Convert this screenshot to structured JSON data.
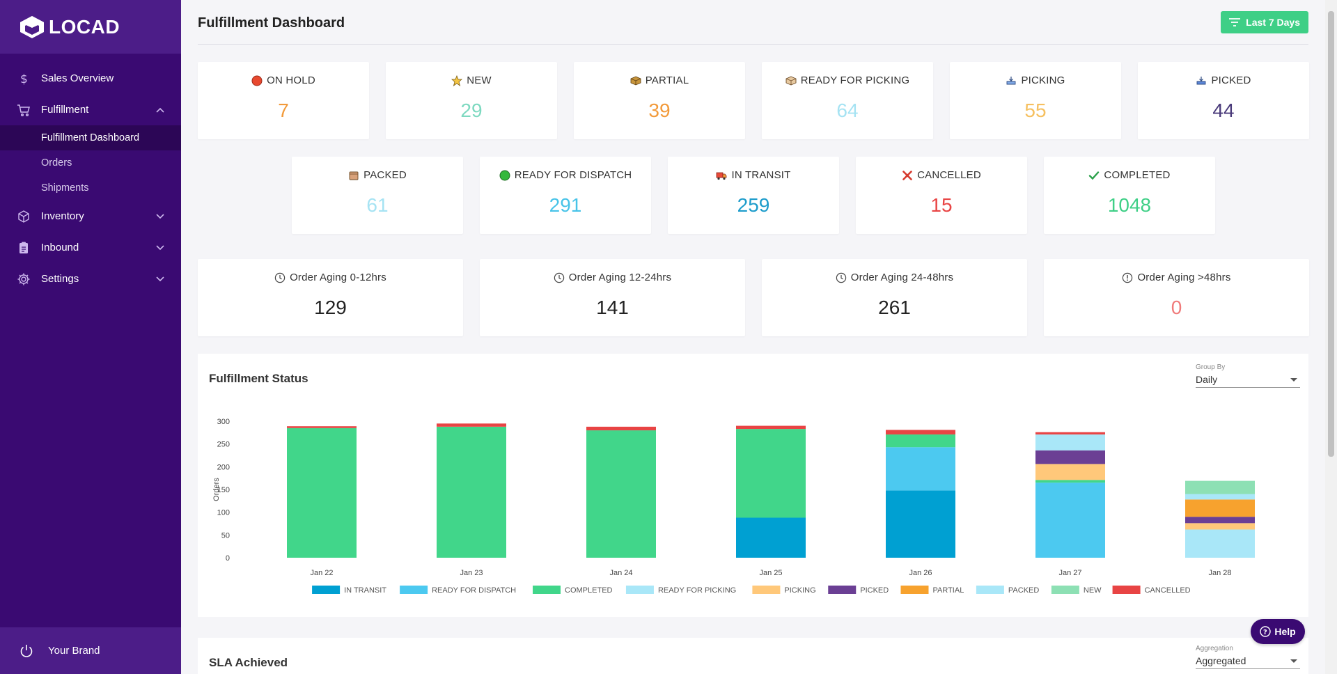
{
  "brand": {
    "name": "LOCAD"
  },
  "sidebar": {
    "items": [
      {
        "label": "Sales Overview",
        "icon": "dollar-icon"
      },
      {
        "label": "Fulfillment",
        "icon": "cart-icon",
        "expanded": true,
        "children": [
          {
            "label": "Fulfillment Dashboard",
            "active": true
          },
          {
            "label": "Orders"
          },
          {
            "label": "Shipments"
          }
        ]
      },
      {
        "label": "Inventory",
        "icon": "box-icon"
      },
      {
        "label": "Inbound",
        "icon": "clipboard-icon"
      },
      {
        "label": "Settings",
        "icon": "gear-icon"
      }
    ],
    "footer": {
      "label": "Your Brand",
      "icon": "power-icon"
    }
  },
  "header": {
    "title": "Fulfillment Dashboard",
    "filter_label": "Last 7 Days"
  },
  "status_cards": [
    {
      "label": "ON HOLD",
      "value": "7",
      "icon": "red-circle-icon",
      "color": "#f29a3a"
    },
    {
      "label": "NEW",
      "value": "29",
      "icon": "star-icon",
      "color": "#7dd9c0"
    },
    {
      "label": "PARTIAL",
      "value": "39",
      "icon": "package-icon",
      "color": "#f29a3a"
    },
    {
      "label": "READY FOR PICKING",
      "value": "64",
      "icon": "box-outline-icon",
      "color": "#a6e3f3"
    },
    {
      "label": "PICKING",
      "value": "55",
      "icon": "tray-icon",
      "color": "#f6c060"
    },
    {
      "label": "PICKED",
      "value": "44",
      "icon": "tray-filled-icon",
      "color": "#4a3a7a"
    },
    {
      "label": "PACKED",
      "value": "61",
      "icon": "parcel-icon",
      "color": "#a6e3f3"
    },
    {
      "label": "READY FOR DISPATCH",
      "value": "291",
      "icon": "green-circle-icon",
      "color": "#47c3e8"
    },
    {
      "label": "IN TRANSIT",
      "value": "259",
      "icon": "truck-icon",
      "color": "#1d9ccb"
    },
    {
      "label": "CANCELLED",
      "value": "15",
      "icon": "cross-icon",
      "color": "#e84444"
    },
    {
      "label": "COMPLETED",
      "value": "1048",
      "icon": "check-icon",
      "color": "#3ecf86"
    }
  ],
  "aging_cards": [
    {
      "label": "Order Aging 0-12hrs",
      "value": "129",
      "icon": "clock-icon",
      "color": "#222222"
    },
    {
      "label": "Order Aging 12-24hrs",
      "value": "141",
      "icon": "clock-icon",
      "color": "#222222"
    },
    {
      "label": "Order Aging 24-48hrs",
      "value": "261",
      "icon": "clock-icon",
      "color": "#222222"
    },
    {
      "label": "Order Aging >48hrs",
      "value": "0",
      "icon": "alert-clock-icon",
      "color": "#f07a7a"
    }
  ],
  "fulfillment_status": {
    "title": "Fulfillment Status",
    "group_by_label": "Group By",
    "group_by_value": "Daily"
  },
  "sla": {
    "title": "SLA Achieved",
    "aggregation_label": "Aggregation",
    "aggregation_value": "Aggregated"
  },
  "help": {
    "label": "Help"
  },
  "chart_data": {
    "type": "bar",
    "stacked": true,
    "ylabel": "Orders",
    "ylim": [
      0,
      300
    ],
    "yticks": [
      0,
      50,
      100,
      150,
      200,
      250,
      300
    ],
    "categories": [
      "Jan 22",
      "Jan 23",
      "Jan 24",
      "Jan 25",
      "Jan 26",
      "Jan 27",
      "Jan 28"
    ],
    "series": [
      {
        "name": "IN TRANSIT",
        "color": "#00a0d2",
        "values": [
          0,
          0,
          0,
          88,
          148,
          0,
          0
        ]
      },
      {
        "name": "READY FOR DISPATCH",
        "color": "#4cc9f0",
        "values": [
          0,
          0,
          0,
          0,
          95,
          165,
          0
        ]
      },
      {
        "name": "COMPLETED",
        "color": "#41d68a",
        "values": [
          285,
          288,
          280,
          195,
          28,
          6,
          0
        ]
      },
      {
        "name": "READY FOR PICKING",
        "color": "#a9e7f8",
        "values": [
          0,
          0,
          0,
          0,
          0,
          0,
          62
        ]
      },
      {
        "name": "PICKING",
        "color": "#ffc87a",
        "values": [
          0,
          0,
          0,
          0,
          0,
          35,
          14
        ]
      },
      {
        "name": "PICKED",
        "color": "#6b3f94",
        "values": [
          0,
          0,
          0,
          0,
          0,
          30,
          14
        ]
      },
      {
        "name": "PARTIAL",
        "color": "#f7a22e",
        "values": [
          0,
          0,
          0,
          0,
          0,
          0,
          38
        ]
      },
      {
        "name": "PACKED",
        "color": "#a9e7f8",
        "values": [
          0,
          0,
          0,
          0,
          0,
          35,
          12
        ]
      },
      {
        "name": "NEW",
        "color": "#8de0b4",
        "values": [
          0,
          0,
          0,
          0,
          0,
          0,
          29
        ]
      },
      {
        "name": "CANCELLED",
        "color": "#e84444",
        "values": [
          4,
          7,
          8,
          7,
          10,
          5,
          0
        ]
      }
    ],
    "legend_position": "bottom",
    "grid": false
  }
}
